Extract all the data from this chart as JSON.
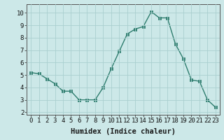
{
  "x": [
    0,
    1,
    2,
    3,
    4,
    5,
    6,
    7,
    8,
    9,
    10,
    11,
    12,
    13,
    14,
    15,
    16,
    17,
    18,
    19,
    20,
    21,
    22,
    23
  ],
  "y": [
    5.2,
    5.1,
    4.7,
    4.3,
    3.7,
    3.7,
    3.0,
    3.0,
    3.0,
    4.0,
    5.5,
    6.9,
    8.3,
    8.7,
    8.9,
    10.1,
    9.6,
    9.6,
    7.5,
    6.3,
    4.6,
    4.5,
    3.0,
    2.4
  ],
  "line_color": "#2e7d6e",
  "marker": "s",
  "marker_size": 2.5,
  "line_width": 1.0,
  "bg_color": "#cce8e8",
  "grid_color": "#aacfcf",
  "xlabel": "Humidex (Indice chaleur)",
  "xlim": [
    -0.5,
    23.5
  ],
  "ylim": [
    1.8,
    10.7
  ],
  "yticks": [
    2,
    3,
    4,
    5,
    6,
    7,
    8,
    9,
    10
  ],
  "xticks": [
    0,
    1,
    2,
    3,
    4,
    5,
    6,
    7,
    8,
    9,
    10,
    11,
    12,
    13,
    14,
    15,
    16,
    17,
    18,
    19,
    20,
    21,
    22,
    23
  ],
  "tick_label_fontsize": 6.5,
  "xlabel_fontsize": 7.5
}
